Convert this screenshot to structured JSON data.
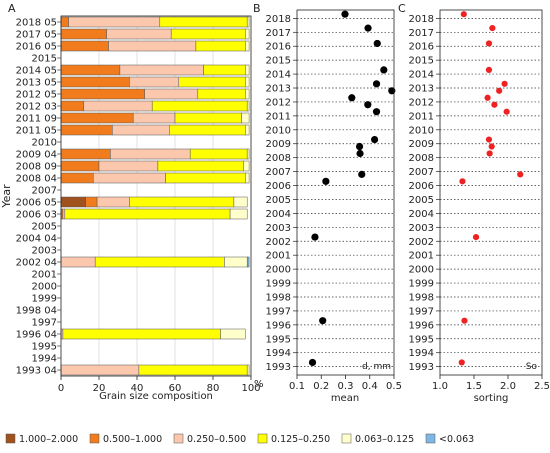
{
  "chart_data": [
    {
      "panel": "A",
      "type": "bar",
      "stacked": "horizontal",
      "xlabel": "Grain size composition",
      "ylabel": "Year",
      "unit": "%",
      "xlim": [
        0,
        100
      ],
      "xticks": [
        0,
        20,
        40,
        60,
        80,
        100
      ],
      "categories": [
        "2018 05",
        "2017 05",
        "2016 05",
        "2015",
        "2014 05",
        "2013 05",
        "2012 05",
        "2012 03",
        "2011 09",
        "2011 05",
        "2010",
        "2009 04",
        "2008 09",
        "2008 04",
        "2007",
        "2006 05",
        "2006 03",
        "2005",
        "2004 04",
        "2003",
        "2002 04",
        "2001",
        "2000",
        "1999",
        "1998 04",
        "1997",
        "1996 04",
        "1995",
        "1994",
        "1993 04"
      ],
      "series": [
        {
          "name": "1.000–2.000",
          "color": "#a0521e",
          "values": [
            0,
            0,
            0,
            null,
            0,
            0,
            0,
            0,
            0,
            0,
            null,
            0,
            0,
            0,
            null,
            13,
            0,
            null,
            null,
            null,
            0,
            null,
            null,
            null,
            null,
            null,
            0,
            null,
            null,
            0
          ]
        },
        {
          "name": "0.500–1.000",
          "color": "#f07c1e",
          "values": [
            4,
            24,
            25,
            null,
            31,
            36,
            44,
            12,
            38,
            27,
            null,
            26,
            20,
            17,
            null,
            6,
            1,
            null,
            null,
            null,
            0,
            null,
            null,
            null,
            null,
            null,
            0,
            null,
            null,
            0
          ]
        },
        {
          "name": "0.250–0.500",
          "color": "#fbc8ae",
          "values": [
            48,
            34,
            46,
            null,
            44,
            26,
            28,
            36,
            22,
            30,
            null,
            42,
            31,
            38,
            null,
            17,
            1,
            null,
            null,
            null,
            18,
            null,
            null,
            null,
            null,
            null,
            1,
            null,
            null,
            41
          ]
        },
        {
          "name": "0.125–0.250",
          "color": "#ffff00",
          "values": [
            46,
            39,
            26,
            null,
            22,
            35,
            25,
            50,
            35,
            40,
            null,
            30,
            45,
            42,
            null,
            55,
            87,
            null,
            null,
            null,
            68,
            null,
            null,
            null,
            null,
            null,
            83,
            null,
            null,
            57
          ]
        },
        {
          "name": "0.063–0.125",
          "color": "#ffffcc",
          "values": [
            1,
            2,
            2,
            null,
            2,
            2,
            2,
            1,
            4,
            2,
            null,
            1,
            3,
            2,
            null,
            7,
            9,
            null,
            null,
            null,
            12,
            null,
            null,
            null,
            null,
            null,
            13,
            null,
            null,
            1
          ]
        },
        {
          "name": "<0.063",
          "color": "#7eb6e6",
          "values": [
            0,
            0,
            0,
            null,
            0,
            0,
            0,
            0,
            0,
            0,
            null,
            0,
            0,
            0,
            null,
            0,
            0,
            null,
            null,
            null,
            1,
            null,
            null,
            null,
            null,
            null,
            0,
            null,
            null,
            0
          ]
        }
      ]
    },
    {
      "panel": "B",
      "type": "scatter",
      "xlabel": "mean",
      "annotation": "d, mm",
      "xlim": [
        0.1,
        0.5
      ],
      "xticks": [
        "0.1",
        "0.2",
        "0.3",
        "0.4",
        "0.5"
      ],
      "yticks": [
        "2018",
        "2017",
        "2016",
        "2015",
        "2014",
        "2013",
        "2012",
        "2011",
        "2010",
        "2009",
        "2008",
        "2007",
        "2006",
        "2005",
        "2004",
        "2003",
        "2002",
        "2001",
        "2000",
        "1999",
        "1998",
        "1997",
        "1996",
        "1995",
        "1994",
        "1993"
      ],
      "color": "#000000",
      "points": [
        {
          "x": 0.298,
          "y": 2018.3
        },
        {
          "x": 0.393,
          "y": 2017.3
        },
        {
          "x": 0.431,
          "y": 2016.2
        },
        {
          "x": 0.458,
          "y": 2014.3
        },
        {
          "x": 0.428,
          "y": 2013.3
        },
        {
          "x": 0.491,
          "y": 2012.8
        },
        {
          "x": 0.326,
          "y": 2012.3
        },
        {
          "x": 0.392,
          "y": 2011.8
        },
        {
          "x": 0.428,
          "y": 2011.3
        },
        {
          "x": 0.42,
          "y": 2009.3
        },
        {
          "x": 0.358,
          "y": 2008.8
        },
        {
          "x": 0.36,
          "y": 2008.3
        },
        {
          "x": 0.367,
          "y": 2006.8
        },
        {
          "x": 0.219,
          "y": 2006.3
        },
        {
          "x": 0.174,
          "y": 2002.3
        },
        {
          "x": 0.206,
          "y": 1996.3
        },
        {
          "x": 0.164,
          "y": 1993.3
        }
      ]
    },
    {
      "panel": "C",
      "type": "scatter",
      "xlabel": "sorting",
      "annotation": "So",
      "xlim": [
        1.0,
        2.5
      ],
      "xticks": [
        "1.0",
        "1.5",
        "2.0",
        "2.5"
      ],
      "yticks": [
        "2018",
        "2017",
        "2016",
        "2015",
        "2014",
        "2013",
        "2012",
        "2011",
        "2010",
        "2009",
        "2008",
        "2007",
        "2006",
        "2005",
        "2004",
        "2003",
        "2002",
        "2001",
        "2000",
        "1999",
        "1998",
        "1997",
        "1996",
        "1995",
        "1994",
        "1993"
      ],
      "color": "#ee2222",
      "points": [
        {
          "x": 1.35,
          "y": 2018.3
        },
        {
          "x": 1.77,
          "y": 2017.3
        },
        {
          "x": 1.72,
          "y": 2016.2
        },
        {
          "x": 1.72,
          "y": 2014.3
        },
        {
          "x": 1.95,
          "y": 2013.3
        },
        {
          "x": 1.87,
          "y": 2012.8
        },
        {
          "x": 1.7,
          "y": 2012.3
        },
        {
          "x": 1.8,
          "y": 2011.8
        },
        {
          "x": 1.98,
          "y": 2011.3
        },
        {
          "x": 1.72,
          "y": 2009.3
        },
        {
          "x": 1.76,
          "y": 2008.8
        },
        {
          "x": 1.73,
          "y": 2008.3
        },
        {
          "x": 2.18,
          "y": 2006.8
        },
        {
          "x": 1.33,
          "y": 2006.3
        },
        {
          "x": 1.53,
          "y": 2002.3
        },
        {
          "x": 1.36,
          "y": 1996.3
        },
        {
          "x": 1.32,
          "y": 1993.3
        }
      ]
    }
  ],
  "legend": [
    {
      "label": "1.000–2.000",
      "color": "#a0521e"
    },
    {
      "label": "0.500–1.000",
      "color": "#f07c1e"
    },
    {
      "label": "0.250–0.500",
      "color": "#fbc8ae"
    },
    {
      "label": "0.125–0.250",
      "color": "#ffff00"
    },
    {
      "label": "0.063–0.125",
      "color": "#ffffcc"
    },
    {
      "label": "<0.063",
      "color": "#7eb6e6"
    }
  ]
}
